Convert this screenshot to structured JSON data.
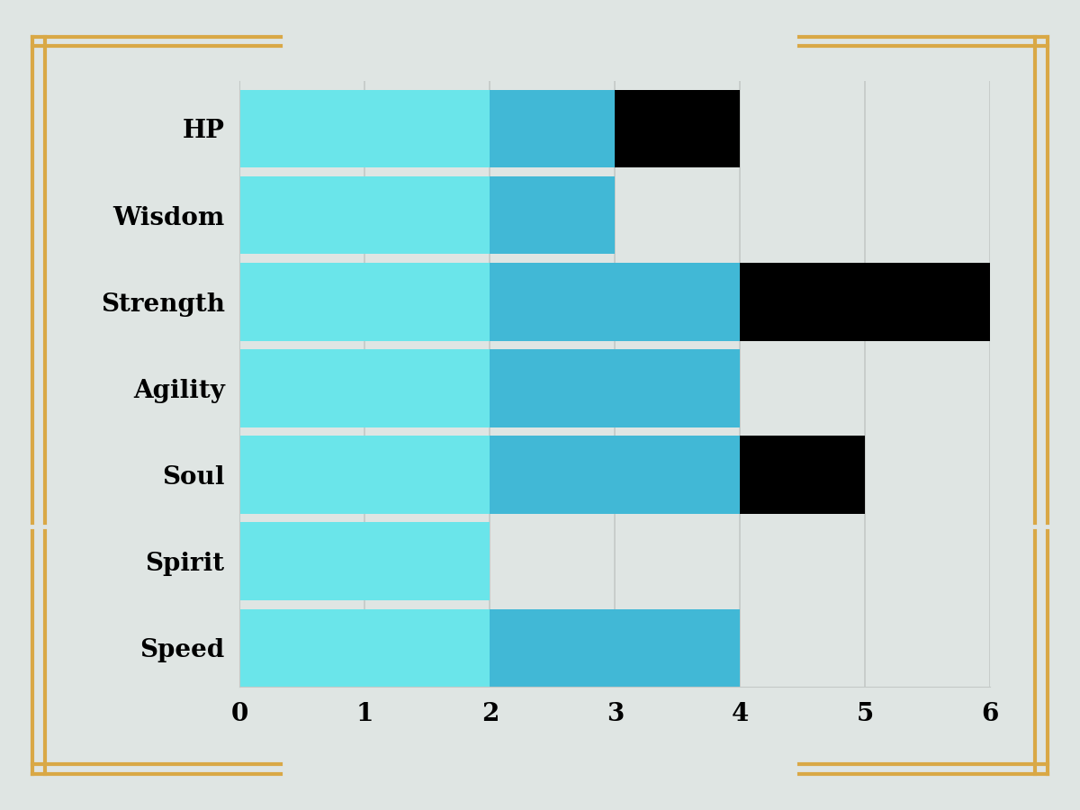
{
  "chart_data": {
    "type": "bar",
    "orientation": "horizontal",
    "stacked": true,
    "grid": true,
    "categories": [
      "HP",
      "Wisdom",
      "Strength",
      "Agility",
      "Soul",
      "Spirit",
      "Speed"
    ],
    "series": [
      {
        "color": "#6ae5ea",
        "values": [
          2,
          2,
          2,
          2,
          2,
          2,
          2
        ]
      },
      {
        "color": "#41b8d6",
        "values": [
          1,
          1,
          2,
          2,
          2,
          0,
          2
        ]
      },
      {
        "color": "#000000",
        "values": [
          1,
          0,
          2,
          0,
          1,
          0,
          0
        ]
      }
    ],
    "xlim": [
      0,
      6
    ],
    "xticks": [
      0,
      1,
      2,
      3,
      4,
      5,
      6
    ]
  }
}
